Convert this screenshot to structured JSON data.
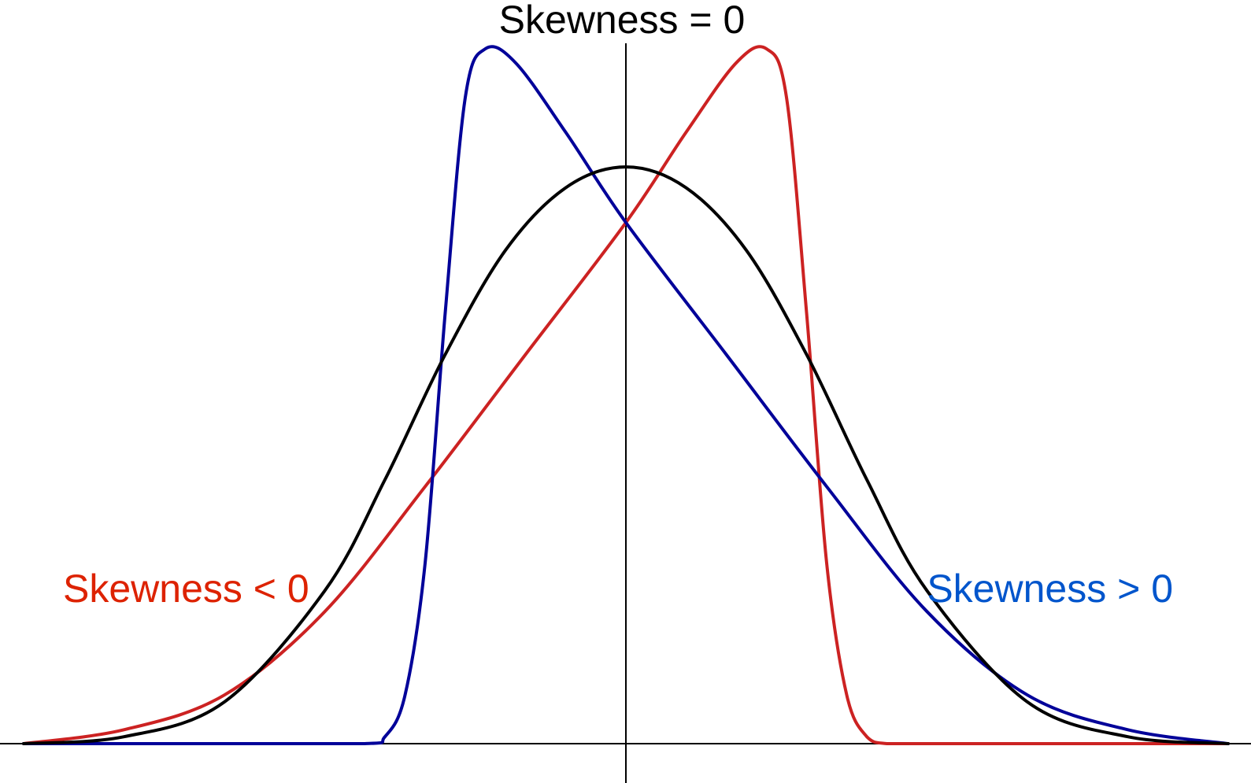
{
  "chart_data": {
    "type": "line",
    "title": "",
    "xlabel": "",
    "ylabel": "",
    "grid": false,
    "axes": "crossing at origin, no ticks",
    "xlim": [
      -3,
      3
    ],
    "ylim": [
      0,
      1
    ],
    "series": [
      {
        "name": "Skewness = 0",
        "color": "#000000",
        "label_position": "top-center",
        "x": [
          -3,
          -2.5,
          -2,
          -1.5,
          -1.2,
          -0.9,
          -0.6,
          -0.3,
          0,
          0.3,
          0.6,
          0.9,
          1.2,
          1.5,
          2,
          2.5,
          3
        ],
        "y": [
          0.0,
          0.01,
          0.06,
          0.22,
          0.38,
          0.56,
          0.71,
          0.8,
          0.83,
          0.8,
          0.71,
          0.56,
          0.38,
          0.22,
          0.06,
          0.01,
          0.0
        ]
      },
      {
        "name": "Skewness < 0",
        "color": "#cc2222",
        "label_position": "left",
        "x": [
          -3,
          -2.5,
          -2,
          -1.5,
          -1.0,
          -0.5,
          0,
          0.3,
          0.55,
          0.7,
          0.8,
          0.9,
          1.0,
          1.1,
          1.2,
          1.3,
          1.5,
          2,
          3
        ],
        "y": [
          0.0,
          0.02,
          0.07,
          0.19,
          0.37,
          0.56,
          0.75,
          0.88,
          0.98,
          1.0,
          0.93,
          0.62,
          0.26,
          0.07,
          0.01,
          0.0,
          0.0,
          0.0,
          0.0
        ]
      },
      {
        "name": "Skewness > 0",
        "color": "#000099",
        "label_position": "right",
        "x": [
          -3,
          -2,
          -1.3,
          -1.2,
          -1.1,
          -1.0,
          -0.9,
          -0.8,
          -0.7,
          -0.55,
          -0.3,
          0,
          0.5,
          1.0,
          1.5,
          2,
          2.5,
          3
        ],
        "y": [
          0.0,
          0.0,
          0.0,
          0.01,
          0.07,
          0.26,
          0.62,
          0.93,
          1.0,
          0.98,
          0.88,
          0.75,
          0.56,
          0.37,
          0.19,
          0.07,
          0.02,
          0.0
        ]
      }
    ],
    "annotations": [
      {
        "text": "Skewness = 0",
        "color": "#000000",
        "placement": "top-center"
      },
      {
        "text": "Skewness < 0",
        "color": "#dd2200",
        "placement": "left"
      },
      {
        "text": "Skewness > 0",
        "color": "#0055cc",
        "placement": "right"
      }
    ]
  }
}
